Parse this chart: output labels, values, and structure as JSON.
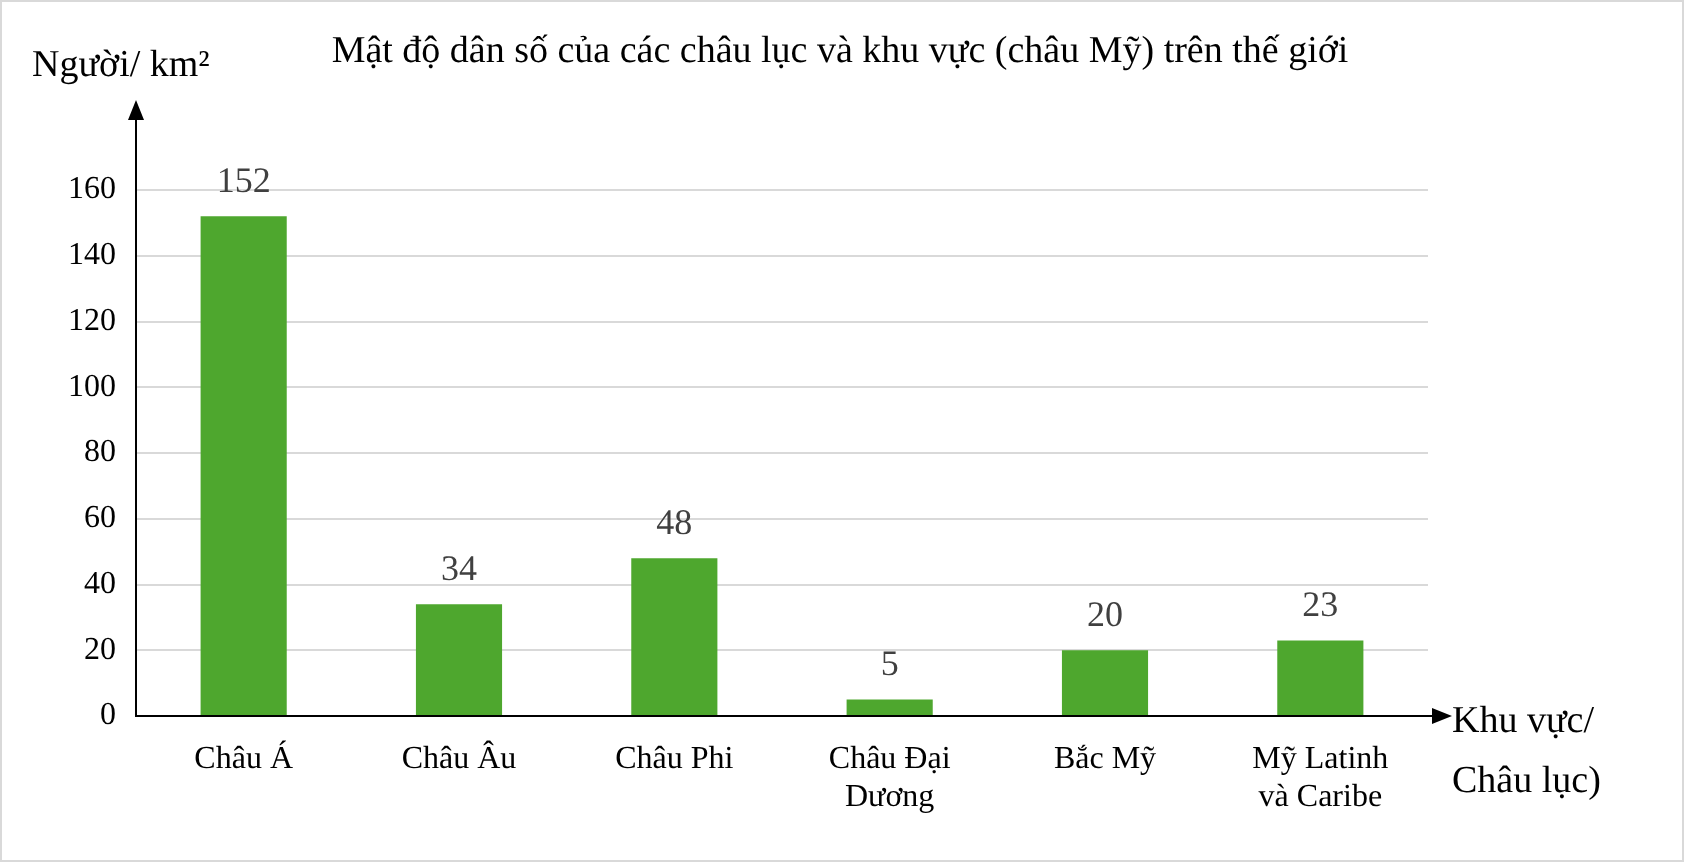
{
  "chart_data": {
    "type": "bar",
    "title": "Mật độ dân số của các châu lục và khu vực (châu Mỹ) trên thế giới",
    "ylabel": "Người/ km²",
    "xlabel": "Khu vực/ Châu lục)",
    "categories": [
      "Châu Á",
      "Châu Âu",
      "Châu Phi",
      "Châu Đại Dương",
      "Bắc Mỹ",
      "Mỹ Latinh và Caribe"
    ],
    "values": [
      152,
      34,
      48,
      5,
      20,
      23
    ],
    "color": "#4ea72e",
    "ylim": [
      0,
      160
    ],
    "yticks": [
      0,
      20,
      40,
      60,
      80,
      100,
      120,
      140,
      160
    ],
    "grid": "y",
    "data_labels": true
  }
}
